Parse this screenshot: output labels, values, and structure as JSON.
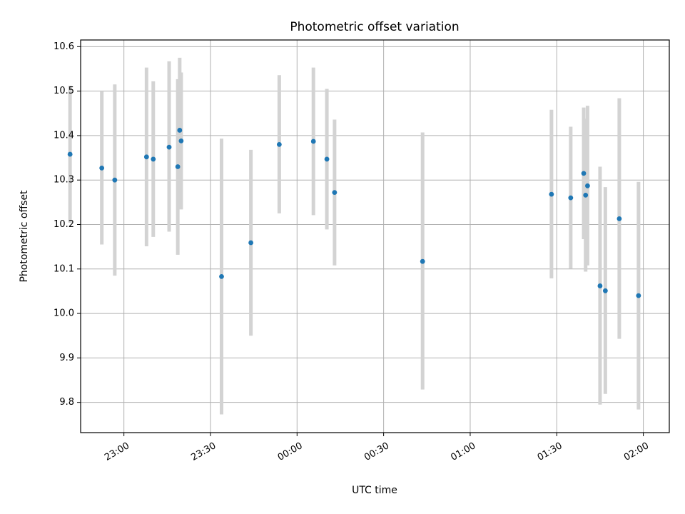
{
  "chart_data": {
    "type": "scatter",
    "title": "Photometric offset variation",
    "xlabel": "UTC time",
    "ylabel": "Photometric offset",
    "grid": true,
    "marker_color": "#1f77b4",
    "errorbar_color": "#d3d3d3",
    "xlim": [
      "22:45",
      "02:09"
    ],
    "ylim": [
      9.732,
      10.615
    ],
    "x_ticks": [
      "23:00",
      "23:30",
      "00:00",
      "00:30",
      "01:00",
      "01:30",
      "02:00"
    ],
    "y_ticks": [
      9.8,
      9.9,
      10.0,
      10.1,
      10.2,
      10.3,
      10.4,
      10.5,
      10.6
    ],
    "points": [
      {
        "t": "22:41:20",
        "y": 10.358,
        "lo": 10.204,
        "hi": 10.512
      },
      {
        "t": "22:52:20",
        "y": 10.327,
        "lo": 10.155,
        "hi": 10.499
      },
      {
        "t": "22:56:50",
        "y": 10.3,
        "lo": 10.085,
        "hi": 10.515
      },
      {
        "t": "23:07:50",
        "y": 10.352,
        "lo": 10.151,
        "hi": 10.553
      },
      {
        "t": "23:10:10",
        "y": 10.347,
        "lo": 10.172,
        "hi": 10.522
      },
      {
        "t": "23:15:40",
        "y": 10.374,
        "lo": 10.184,
        "hi": 10.567
      },
      {
        "t": "23:18:40",
        "y": 10.33,
        "lo": 10.132,
        "hi": 10.527
      },
      {
        "t": "23:19:20",
        "y": 10.412,
        "lo": 10.25,
        "hi": 10.575
      },
      {
        "t": "23:19:50",
        "y": 10.388,
        "lo": 10.234,
        "hi": 10.542
      },
      {
        "t": "23:33:50",
        "y": 10.083,
        "lo": 9.773,
        "hi": 10.393
      },
      {
        "t": "23:44:00",
        "y": 10.159,
        "lo": 9.95,
        "hi": 10.368
      },
      {
        "t": "23:53:50",
        "y": 10.38,
        "lo": 10.225,
        "hi": 10.536
      },
      {
        "t": "00:05:40",
        "y": 10.387,
        "lo": 10.221,
        "hi": 10.553
      },
      {
        "t": "00:10:20",
        "y": 10.347,
        "lo": 10.189,
        "hi": 10.505
      },
      {
        "t": "00:13:00",
        "y": 10.272,
        "lo": 10.108,
        "hi": 10.436
      },
      {
        "t": "00:43:30",
        "y": 10.117,
        "lo": 9.829,
        "hi": 10.407
      },
      {
        "t": "01:28:10",
        "y": 10.268,
        "lo": 10.079,
        "hi": 10.458
      },
      {
        "t": "01:34:50",
        "y": 10.26,
        "lo": 10.101,
        "hi": 10.42
      },
      {
        "t": "01:39:20",
        "y": 10.315,
        "lo": 10.167,
        "hi": 10.463
      },
      {
        "t": "01:40:00",
        "y": 10.266,
        "lo": 10.094,
        "hi": 10.438
      },
      {
        "t": "01:40:40",
        "y": 10.287,
        "lo": 10.108,
        "hi": 10.467
      },
      {
        "t": "01:45:00",
        "y": 10.062,
        "lo": 9.795,
        "hi": 10.33
      },
      {
        "t": "01:46:50",
        "y": 10.051,
        "lo": 9.819,
        "hi": 10.284
      },
      {
        "t": "01:51:40",
        "y": 10.213,
        "lo": 9.943,
        "hi": 10.484
      },
      {
        "t": "01:58:20",
        "y": 10.04,
        "lo": 9.784,
        "hi": 10.296
      }
    ]
  }
}
